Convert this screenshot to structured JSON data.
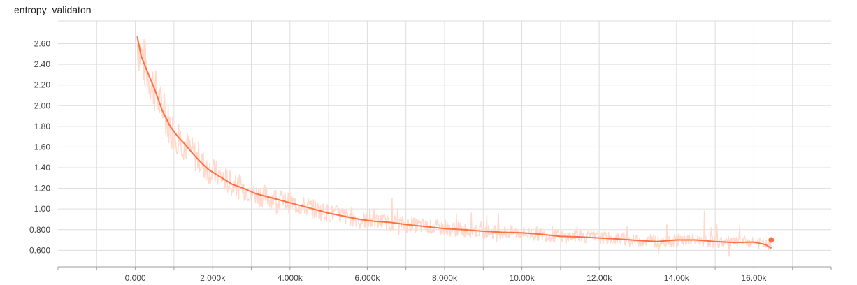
{
  "chart_data": {
    "type": "line",
    "title": "entropy_validaton",
    "xlabel": "",
    "ylabel": "",
    "xlim": [
      -2000,
      18000
    ],
    "ylim": [
      0.44,
      2.82
    ],
    "grid": true,
    "x_ticks": [
      0,
      2000,
      4000,
      6000,
      8000,
      10000,
      12000,
      14000,
      16000
    ],
    "x_tick_labels": [
      "0.000",
      "2.000k",
      "4.000k",
      "6.000k",
      "8.000k",
      "10.00k",
      "12.00k",
      "14.00k",
      "16.00k"
    ],
    "y_ticks": [
      0.6,
      0.8,
      1.0,
      1.2,
      1.4,
      1.6,
      1.8,
      2.0,
      2.2,
      2.4,
      2.6
    ],
    "y_tick_labels": [
      "0.600",
      "0.800",
      "1.00",
      "1.20",
      "1.40",
      "1.60",
      "1.80",
      "2.00",
      "2.20",
      "2.40",
      "2.60"
    ],
    "colors": {
      "smoothed": "#ff7043",
      "raw": "#ffd9cc",
      "grid": "#dddddd",
      "axis": "#9e9e9e"
    },
    "series": [
      {
        "x": [
          50,
          150,
          300,
          500,
          700,
          900,
          1100,
          1300,
          1500,
          1700,
          1900,
          2200,
          2500,
          2800,
          3100,
          3400,
          3700,
          4000,
          4300,
          4600,
          5000,
          5400,
          5800,
          6200,
          6600,
          7000,
          7500,
          8000,
          8500,
          9000,
          9500,
          10000,
          10500,
          11000,
          11500,
          12000,
          12500,
          13000,
          13500,
          14000,
          14500,
          15000,
          15500,
          16000,
          16300,
          16450
        ],
        "y": [
          2.67,
          2.48,
          2.34,
          2.16,
          1.95,
          1.8,
          1.7,
          1.62,
          1.53,
          1.45,
          1.38,
          1.31,
          1.24,
          1.2,
          1.15,
          1.12,
          1.09,
          1.06,
          1.03,
          1.0,
          0.96,
          0.93,
          0.9,
          0.88,
          0.87,
          0.85,
          0.83,
          0.81,
          0.8,
          0.785,
          0.775,
          0.77,
          0.755,
          0.735,
          0.73,
          0.72,
          0.71,
          0.695,
          0.685,
          0.7,
          0.7,
          0.685,
          0.675,
          0.68,
          0.655,
          0.62
        ]
      }
    ],
    "last_point": {
      "x": 16450,
      "y": 0.7
    }
  }
}
